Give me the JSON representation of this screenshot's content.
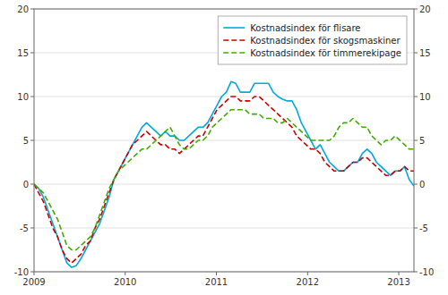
{
  "chart_data": {
    "type": "line",
    "x": [
      2009.0,
      2009.051441,
      2009.102881,
      2009.154322,
      2009.205763,
      2009.257204,
      2009.308644,
      2009.360085,
      2009.411526,
      2009.462967,
      2009.514407,
      2009.565848,
      2009.617289,
      2009.66873,
      2009.72017,
      2009.771611,
      2009.823052,
      2009.874493,
      2009.925933,
      2009.977374,
      2010.028815,
      2010.080256,
      2010.131696,
      2010.183137,
      2010.234578,
      2010.286019,
      2010.337459,
      2010.3889,
      2010.440341,
      2010.491781,
      2010.543222,
      2010.594663,
      2010.646104,
      2010.697544,
      2010.748985,
      2010.800426,
      2010.851867,
      2010.903307,
      2010.954748,
      2011.006189,
      2011.05763,
      2011.10907,
      2011.160511,
      2011.211952,
      2011.263393,
      2011.314833,
      2011.366274,
      2011.417715,
      2011.469156,
      2011.520596,
      2011.572037,
      2011.623478,
      2011.674919,
      2011.726359,
      2011.7778,
      2011.829241,
      2011.880681,
      2011.932122,
      2011.983563,
      2012.035004,
      2012.086444,
      2012.137885,
      2012.189326,
      2012.240767,
      2012.292207,
      2012.343648,
      2012.395089,
      2012.44653,
      2012.49797,
      2012.549411,
      2012.600852,
      2012.652293,
      2012.703733,
      2012.755174,
      2012.806615,
      2012.858056,
      2012.909496,
      2012.960937,
      2013.012378,
      2013.063819,
      2013.115259,
      2013.1667
    ],
    "series": [
      {
        "name": "Kostnadsindex för flisare",
        "color": "#00aadd",
        "line_style": "solid",
        "values": [
          0.0,
          -0.5,
          -1.5,
          -3.0,
          -4.5,
          -6.0,
          -7.5,
          -9.0,
          -9.5,
          -9.3,
          -8.5,
          -7.5,
          -6.5,
          -5.5,
          -4.5,
          -3.0,
          -1.5,
          0.5,
          1.5,
          2.5,
          3.5,
          4.5,
          5.5,
          6.5,
          7.0,
          6.5,
          6.0,
          5.5,
          6.0,
          5.5,
          5.5,
          5.0,
          5.0,
          5.5,
          6.0,
          6.5,
          6.5,
          7.0,
          8.0,
          9.0,
          10.0,
          10.5,
          11.7,
          11.5,
          10.5,
          10.5,
          10.5,
          11.5,
          11.5,
          11.5,
          11.5,
          10.5,
          10.0,
          9.7,
          9.5,
          9.5,
          8.5,
          7.0,
          6.0,
          5.0,
          4.0,
          4.5,
          3.5,
          2.5,
          2.0,
          1.5,
          1.5,
          2.0,
          2.5,
          2.5,
          3.5,
          4.0,
          3.5,
          2.5,
          2.0,
          1.5,
          1.0,
          1.5,
          1.5,
          2.0,
          0.5,
          -0.2
        ]
      },
      {
        "name": "Kostnadsindex för skogsmaskiner",
        "color": "#cc0000",
        "line_style": "dashed",
        "values": [
          0.0,
          -1.0,
          -2.0,
          -3.5,
          -5.0,
          -6.0,
          -7.5,
          -8.5,
          -9.0,
          -8.5,
          -8.0,
          -7.0,
          -6.5,
          -5.0,
          -4.0,
          -2.5,
          -1.0,
          0.5,
          1.5,
          2.5,
          3.5,
          4.5,
          5.0,
          5.5,
          6.0,
          5.5,
          5.0,
          4.5,
          4.5,
          4.0,
          4.0,
          3.5,
          4.0,
          4.5,
          5.0,
          5.5,
          5.5,
          6.5,
          7.5,
          8.5,
          9.0,
          9.5,
          10.0,
          10.0,
          9.5,
          9.5,
          9.5,
          10.0,
          10.0,
          9.5,
          9.0,
          8.5,
          8.0,
          7.5,
          7.0,
          6.5,
          5.5,
          5.0,
          4.5,
          4.0,
          4.0,
          3.5,
          2.5,
          2.0,
          1.5,
          1.5,
          1.5,
          2.0,
          2.5,
          2.5,
          3.0,
          3.0,
          2.5,
          2.0,
          1.5,
          1.0,
          1.0,
          1.5,
          1.5,
          2.0,
          1.5,
          1.5
        ]
      },
      {
        "name": "Kostnadsindex för timmerekipage",
        "color": "#44aa00",
        "line_style": "dashed",
        "values": [
          0.0,
          -0.5,
          -1.0,
          -2.0,
          -3.0,
          -4.0,
          -5.5,
          -7.0,
          -7.5,
          -7.5,
          -7.0,
          -6.5,
          -6.0,
          -5.0,
          -3.5,
          -2.0,
          -0.5,
          0.5,
          1.5,
          2.0,
          2.5,
          3.0,
          3.5,
          4.0,
          4.0,
          4.5,
          5.0,
          5.5,
          6.0,
          6.5,
          5.5,
          4.5,
          4.0,
          4.0,
          4.5,
          5.0,
          5.0,
          5.5,
          6.5,
          7.0,
          7.5,
          8.0,
          8.5,
          8.5,
          8.5,
          8.5,
          8.0,
          8.0,
          8.0,
          7.5,
          7.5,
          7.5,
          7.0,
          7.0,
          7.5,
          7.0,
          6.5,
          6.0,
          5.5,
          5.0,
          5.0,
          5.0,
          5.0,
          5.0,
          5.5,
          6.5,
          7.0,
          7.0,
          7.5,
          7.0,
          6.5,
          6.5,
          5.5,
          5.0,
          4.5,
          5.0,
          5.0,
          5.5,
          5.0,
          4.5,
          4.0,
          4.0
        ]
      }
    ],
    "xlim": [
      2009.0,
      2013.1667
    ],
    "xticks": [
      2009,
      2010,
      2011,
      2012,
      2013
    ],
    "ylim": [
      -10,
      20
    ],
    "yticks": [
      -10,
      -5,
      0,
      5,
      10,
      15,
      20
    ],
    "y2lim": [
      -10,
      20
    ],
    "y2ticks": [
      -10,
      -5,
      0,
      5,
      10,
      15,
      20
    ],
    "grid": true,
    "legend": "upper right"
  }
}
